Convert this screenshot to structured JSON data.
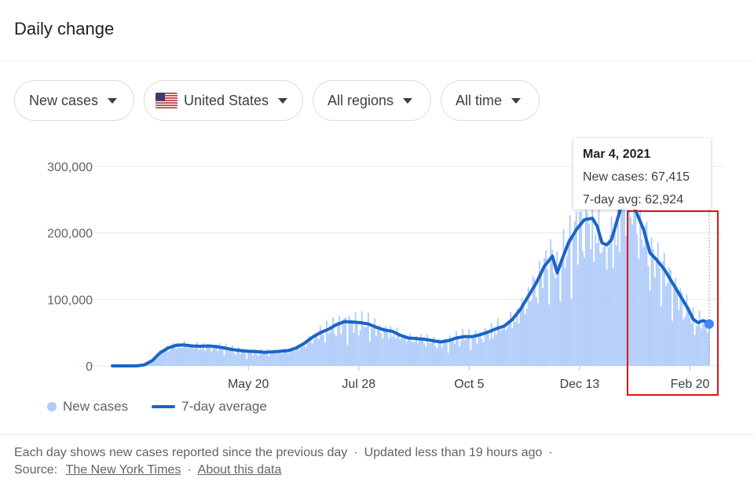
{
  "header": {
    "title": "Daily change"
  },
  "filters": {
    "metric": "New cases",
    "location": "United States",
    "regions": "All regions",
    "time": "All time"
  },
  "tooltip": {
    "date": "Mar 4, 2021",
    "cases_text": "New cases: 67,415",
    "avg_text": "7-day avg: 62,924"
  },
  "legend": {
    "bars": "New cases",
    "line": "7-day average"
  },
  "footer": {
    "line1": "Each day shows new cases reported since the previous day",
    "updated": "Updated less than 19 hours ago",
    "source_label": "Source:",
    "source_link": "The New York Times",
    "about_link": "About this data"
  },
  "colors": {
    "bars": "#aecbfa",
    "line": "#1a64c8",
    "highlight": "#e0141e"
  },
  "chart_data": {
    "type": "bar",
    "title": "Daily change",
    "xlabel": "",
    "ylabel": "",
    "ylim": [
      0,
      300000
    ],
    "yticks": [
      0,
      100000,
      200000,
      300000
    ],
    "ytick_labels": [
      "0",
      "100,000",
      "200,000",
      "300,000"
    ],
    "xtick_labels": [
      "May 20",
      "Jul 28",
      "Oct 5",
      "Dec 13",
      "Feb 20"
    ],
    "xtick_day_index": [
      85,
      154,
      223,
      292,
      361
    ],
    "start_date": "2020-02-25",
    "end_date": "2021-03-04",
    "grid": true,
    "legend_position": "bottom-left",
    "series_avg_keyframes": [
      {
        "day": 0,
        "value": 0
      },
      {
        "day": 15,
        "value": 0
      },
      {
        "day": 20,
        "value": 1500
      },
      {
        "day": 25,
        "value": 8000
      },
      {
        "day": 30,
        "value": 20000
      },
      {
        "day": 35,
        "value": 27000
      },
      {
        "day": 40,
        "value": 31000
      },
      {
        "day": 45,
        "value": 31500
      },
      {
        "day": 50,
        "value": 30000
      },
      {
        "day": 55,
        "value": 29500
      },
      {
        "day": 60,
        "value": 30000
      },
      {
        "day": 65,
        "value": 29000
      },
      {
        "day": 70,
        "value": 27000
      },
      {
        "day": 75,
        "value": 24500
      },
      {
        "day": 80,
        "value": 23000
      },
      {
        "day": 85,
        "value": 22000
      },
      {
        "day": 90,
        "value": 21500
      },
      {
        "day": 95,
        "value": 20500
      },
      {
        "day": 100,
        "value": 21000
      },
      {
        "day": 105,
        "value": 22000
      },
      {
        "day": 110,
        "value": 23000
      },
      {
        "day": 115,
        "value": 27000
      },
      {
        "day": 120,
        "value": 34000
      },
      {
        "day": 125,
        "value": 43000
      },
      {
        "day": 130,
        "value": 50000
      },
      {
        "day": 135,
        "value": 55000
      },
      {
        "day": 140,
        "value": 62000
      },
      {
        "day": 145,
        "value": 66500
      },
      {
        "day": 150,
        "value": 66000
      },
      {
        "day": 155,
        "value": 65000
      },
      {
        "day": 160,
        "value": 63000
      },
      {
        "day": 165,
        "value": 58000
      },
      {
        "day": 170,
        "value": 54000
      },
      {
        "day": 175,
        "value": 52000
      },
      {
        "day": 180,
        "value": 46000
      },
      {
        "day": 185,
        "value": 42000
      },
      {
        "day": 190,
        "value": 41000
      },
      {
        "day": 195,
        "value": 40000
      },
      {
        "day": 200,
        "value": 38000
      },
      {
        "day": 205,
        "value": 36000
      },
      {
        "day": 210,
        "value": 38000
      },
      {
        "day": 215,
        "value": 42000
      },
      {
        "day": 220,
        "value": 44000
      },
      {
        "day": 225,
        "value": 44000
      },
      {
        "day": 230,
        "value": 47000
      },
      {
        "day": 235,
        "value": 51000
      },
      {
        "day": 240,
        "value": 56000
      },
      {
        "day": 245,
        "value": 60000
      },
      {
        "day": 250,
        "value": 70000
      },
      {
        "day": 255,
        "value": 85000
      },
      {
        "day": 260,
        "value": 105000
      },
      {
        "day": 265,
        "value": 125000
      },
      {
        "day": 270,
        "value": 150000
      },
      {
        "day": 275,
        "value": 165000
      },
      {
        "day": 278,
        "value": 140000
      },
      {
        "day": 281,
        "value": 160000
      },
      {
        "day": 285,
        "value": 185000
      },
      {
        "day": 290,
        "value": 205000
      },
      {
        "day": 295,
        "value": 220000
      },
      {
        "day": 300,
        "value": 222000
      },
      {
        "day": 303,
        "value": 210000
      },
      {
        "day": 306,
        "value": 185000
      },
      {
        "day": 309,
        "value": 182000
      },
      {
        "day": 312,
        "value": 190000
      },
      {
        "day": 315,
        "value": 215000
      },
      {
        "day": 318,
        "value": 240000
      },
      {
        "day": 322,
        "value": 252000
      },
      {
        "day": 325,
        "value": 245000
      },
      {
        "day": 328,
        "value": 228000
      },
      {
        "day": 332,
        "value": 205000
      },
      {
        "day": 336,
        "value": 170000
      },
      {
        "day": 340,
        "value": 160000
      },
      {
        "day": 345,
        "value": 145000
      },
      {
        "day": 350,
        "value": 125000
      },
      {
        "day": 355,
        "value": 105000
      },
      {
        "day": 360,
        "value": 85000
      },
      {
        "day": 363,
        "value": 70000
      },
      {
        "day": 366,
        "value": 65000
      },
      {
        "day": 369,
        "value": 68000
      },
      {
        "day": 372,
        "value": 66000
      },
      {
        "day": 373,
        "value": 62924
      }
    ],
    "selected_point": {
      "date": "Mar 4, 2021",
      "new_cases": 67415,
      "avg": 62924
    }
  }
}
